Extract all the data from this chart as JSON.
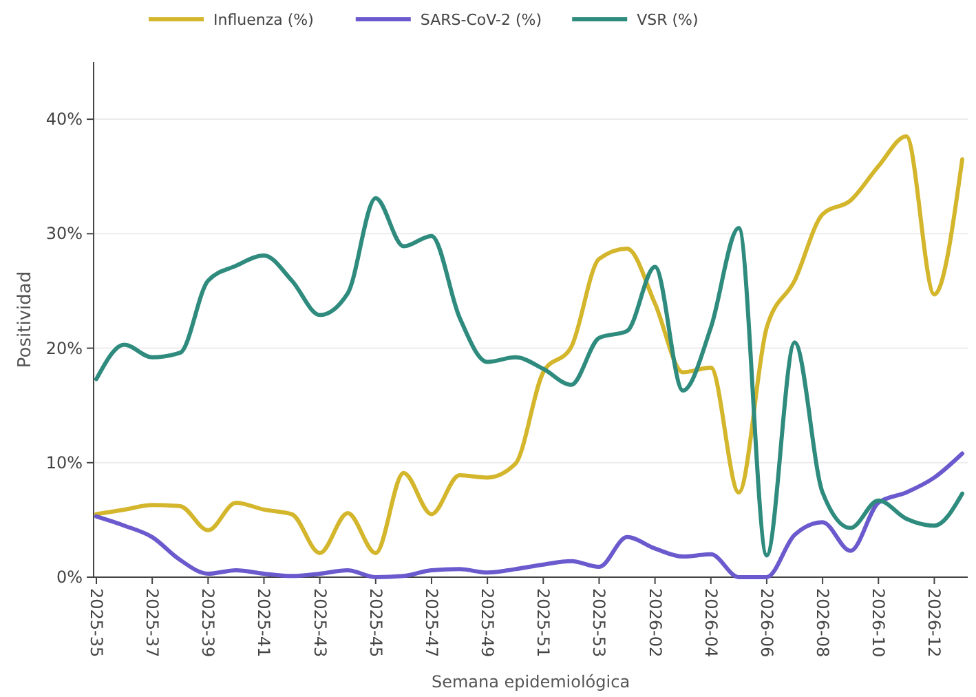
{
  "chart_data": {
    "type": "line",
    "xlabel": "Semana epidemiológica",
    "ylabel": "Positividad",
    "categories": [
      "2025-35",
      null,
      "2025-37",
      null,
      "2025-39",
      null,
      "2025-41",
      null,
      "2025-43",
      null,
      "2025-45",
      null,
      "2025-47",
      null,
      "2025-49",
      null,
      "2025-51",
      null,
      "2025-53",
      null,
      "2026-02",
      null,
      "2026-04",
      null,
      "2026-06",
      null,
      "2026-08",
      null,
      "2026-10",
      null,
      "2026-12",
      null
    ],
    "series": [
      {
        "name": "Influenza (%)",
        "color": "#d4b62c",
        "values": [
          5.5,
          5.9,
          6.3,
          6.2,
          4.1,
          6.5,
          5.9,
          5.5,
          2.1,
          5.6,
          2.1,
          9.1,
          5.5,
          8.9,
          8.7,
          9.9,
          17.9,
          20.1,
          27.8,
          28.7,
          23.9,
          17.9,
          18.3,
          7.4,
          21.8,
          25.9,
          31.7,
          32.9,
          35.9,
          38.5,
          24.7,
          36.5
        ]
      },
      {
        "name": "SARS-CoV-2 (%)",
        "color": "#6a5acd",
        "values": [
          5.3,
          4.5,
          3.5,
          1.5,
          0.3,
          0.6,
          0.3,
          0.1,
          0.3,
          0.6,
          0,
          0.1,
          0.6,
          0.7,
          0.4,
          0.7,
          1.1,
          1.4,
          0.9,
          3.5,
          2.5,
          1.8,
          2,
          0,
          0,
          3.7,
          4.8,
          2.3,
          6.5,
          7.4,
          8.7,
          10.8
        ]
      },
      {
        "name": "VSR (%)",
        "color": "#2e8b7e",
        "values": [
          17.3,
          20.3,
          19.2,
          19.6,
          25.9,
          27.2,
          28.1,
          25.9,
          22.9,
          24.8,
          33.1,
          28.9,
          29.8,
          22.7,
          18.8,
          19.2,
          18.2,
          16.8,
          20.9,
          21.5,
          27.1,
          16.3,
          21.8,
          30.5,
          1.9,
          20.5,
          7.4,
          4.3,
          6.7,
          5.1,
          4.5,
          7.3
        ]
      }
    ],
    "ylim": [
      0,
      45
    ],
    "yticks": [
      {
        "value": 0,
        "label": "0%"
      },
      {
        "value": 10,
        "label": "10%"
      },
      {
        "value": 20,
        "label": "20%"
      },
      {
        "value": 30,
        "label": "30%"
      },
      {
        "value": 40,
        "label": "40%"
      }
    ],
    "grid": "y",
    "legend": "top",
    "marker": "none",
    "line_style": "solid"
  }
}
